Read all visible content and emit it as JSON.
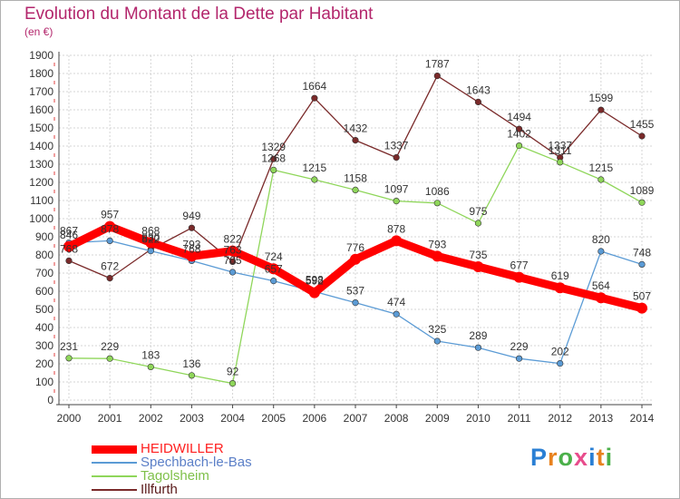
{
  "header": {
    "title": "Evolution du Montant de la Dette par Habitant",
    "subtitle": "(en €)"
  },
  "logo": {
    "letters": [
      "P",
      "r",
      "o",
      "x",
      "i",
      "t",
      "i"
    ],
    "colors": [
      "#2a7fd4",
      "#e8821e",
      "#4bb04a",
      "#e84c8c",
      "#2a7fd4",
      "#e8821e",
      "#4bb04a"
    ]
  },
  "chart_data": {
    "type": "line",
    "title": "Evolution du Montant de la Dette par Habitant",
    "subtitle": "(en €)",
    "xlabel": "",
    "ylabel": "",
    "x": [
      "2000",
      "2001",
      "2002",
      "2003",
      "2004",
      "2005",
      "2006",
      "2007",
      "2008",
      "2009",
      "2010",
      "2011",
      "2012",
      "2013",
      "2014"
    ],
    "ylim": [
      0,
      1900
    ],
    "yticks": [
      0,
      100,
      200,
      300,
      400,
      500,
      600,
      700,
      800,
      900,
      1000,
      1100,
      1200,
      1300,
      1400,
      1500,
      1600,
      1700,
      1800,
      1900
    ],
    "grid": true,
    "legend_position": "bottom-left",
    "series": [
      {
        "name": "HEIDWILLER",
        "color": "#ff0000",
        "label_color": "#ff2020",
        "values": [
          846,
          957,
          868,
          793,
          822,
          724,
          592,
          776,
          878,
          793,
          735,
          677,
          619,
          564,
          507
        ],
        "labels": [
          "846",
          "957",
          "868",
          "793",
          "822",
          "724",
          "592",
          "776",
          "878",
          "793",
          "735",
          "677",
          "619",
          "564",
          "507"
        ]
      },
      {
        "name": "Spechbach-le-Bas",
        "color": "#5b9bd5",
        "label_color": "#5b7fc7",
        "values": [
          867,
          878,
          822,
          768,
          705,
          657,
          598,
          537,
          474,
          325,
          289,
          229,
          202,
          820,
          748
        ],
        "labels": [
          "867",
          "878",
          "822",
          "768",
          "705",
          "657",
          "598",
          "537",
          "474",
          "325",
          "289",
          "229",
          "202",
          "820",
          "748"
        ]
      },
      {
        "name": "Tagolsheim",
        "color": "#8fd65a",
        "label_color": "#7fc04a",
        "values": [
          231,
          229,
          183,
          136,
          92,
          1268,
          1215,
          1158,
          1097,
          1086,
          975,
          1402,
          1311,
          1215,
          1089
        ],
        "labels": [
          "231",
          "229",
          "183",
          "136",
          "92",
          "1268",
          "1215",
          "1158",
          "1097",
          "1086",
          "975",
          "1402",
          "1311",
          "1215",
          "1089"
        ]
      },
      {
        "name": "Illfurth",
        "color": "#7a2a2a",
        "label_color": "#5a1a1a",
        "values": [
          768,
          672,
          830,
          949,
          763,
          1329,
          1664,
          1432,
          1337,
          1787,
          1643,
          1494,
          1337,
          1599,
          1455
        ],
        "labels": [
          "768",
          "672",
          "830",
          "949",
          "763",
          "1329",
          "1664",
          "1432",
          "1337",
          "1787",
          "1643",
          "1494",
          "1337",
          "1599",
          "1455"
        ]
      }
    ]
  }
}
